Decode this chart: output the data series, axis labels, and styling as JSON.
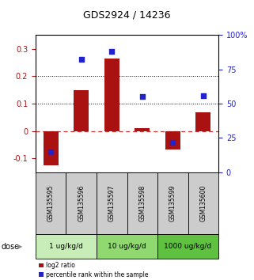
{
  "title": "GDS2924 / 14236",
  "samples": [
    "GSM135595",
    "GSM135596",
    "GSM135597",
    "GSM135598",
    "GSM135599",
    "GSM135600"
  ],
  "log2_ratio": [
    -0.125,
    0.148,
    0.265,
    0.012,
    -0.068,
    0.068
  ],
  "percentile_rank": [
    15,
    82,
    88,
    55,
    22,
    56
  ],
  "dose_groups": [
    {
      "label": "1 ug/kg/d",
      "start": 0,
      "end": 2,
      "color": "#c8edb8"
    },
    {
      "label": "10 ug/kg/d",
      "start": 2,
      "end": 4,
      "color": "#90d870"
    },
    {
      "label": "1000 ug/kg/d",
      "start": 4,
      "end": 6,
      "color": "#60c040"
    }
  ],
  "bar_color": "#aa1111",
  "scatter_color": "#2222cc",
  "ylim_left": [
    -0.15,
    0.35
  ],
  "ylim_right": [
    0,
    100
  ],
  "yticks_left": [
    -0.1,
    0.0,
    0.1,
    0.2,
    0.3
  ],
  "yticks_right": [
    0,
    25,
    50,
    75,
    100
  ],
  "zero_line_color": "#cc3333",
  "dotted_line_color": "#000000",
  "bg_color": "#ffffff",
  "legend_red_label": "log2 ratio",
  "legend_blue_label": "percentile rank within the sample",
  "sample_area_color": "#cccccc",
  "bar_width": 0.5
}
